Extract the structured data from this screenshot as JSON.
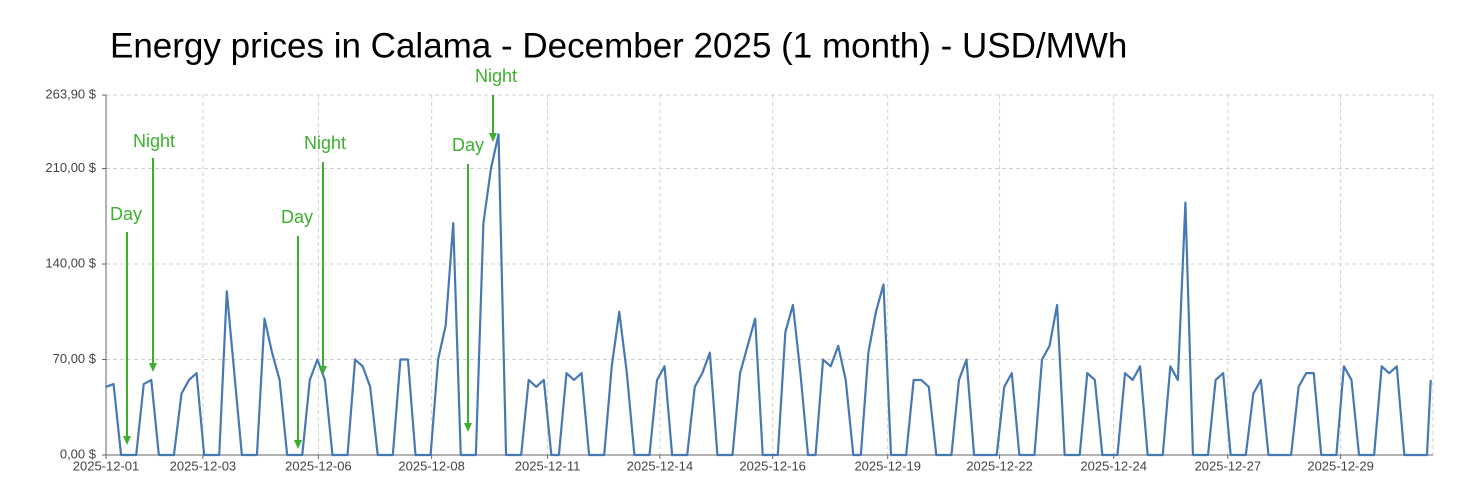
{
  "chart_data": {
    "type": "line",
    "title": "Energy prices in Calama - December 2025 (1 month) - USD/MWh",
    "xlim": [
      1,
      30.3
    ],
    "xticks": [
      {
        "value": 1,
        "label": "2025-12-01"
      },
      {
        "value": 3.14,
        "label": "2025-12-03"
      },
      {
        "value": 5.69,
        "label": "2025-12-06"
      },
      {
        "value": 8.19,
        "label": "2025-12-08"
      },
      {
        "value": 10.75,
        "label": "2025-12-11"
      },
      {
        "value": 13.23,
        "label": "2025-12-14"
      },
      {
        "value": 15.72,
        "label": "2025-12-16"
      },
      {
        "value": 18.26,
        "label": "2025-12-19"
      },
      {
        "value": 20.73,
        "label": "2025-12-22"
      },
      {
        "value": 23.25,
        "label": "2025-12-24"
      },
      {
        "value": 25.77,
        "label": "2025-12-27"
      },
      {
        "value": 28.26,
        "label": "2025-12-29"
      }
    ],
    "ylim": [
      0,
      263.9
    ],
    "yticks": [
      {
        "value": 0,
        "label": "0,00 $"
      },
      {
        "value": 70,
        "label": "70,00 $"
      },
      {
        "value": 140,
        "label": "140,00 $"
      },
      {
        "value": 210,
        "label": "210,00 $"
      },
      {
        "value": 263.9,
        "label": "263,90 $"
      }
    ],
    "grid": true,
    "x": [
      1,
      1.167,
      1.333,
      1.5,
      1.667,
      1.833,
      2,
      2.167,
      2.333,
      2.5,
      2.667,
      2.833,
      3,
      3.167,
      3.333,
      3.5,
      3.667,
      3.833,
      4,
      4.167,
      4.333,
      4.5,
      4.667,
      4.833,
      5,
      5.167,
      5.333,
      5.5,
      5.667,
      5.833,
      6,
      6.167,
      6.333,
      6.5,
      6.667,
      6.833,
      7,
      7.167,
      7.333,
      7.5,
      7.667,
      7.833,
      8,
      8.167,
      8.333,
      8.5,
      8.667,
      8.833,
      9,
      9.167,
      9.333,
      9.5,
      9.667,
      9.833,
      10,
      10.167,
      10.333,
      10.5,
      10.667,
      10.833,
      11,
      11.167,
      11.333,
      11.5,
      11.667,
      11.833,
      12,
      12.167,
      12.333,
      12.5,
      12.667,
      12.833,
      13,
      13.167,
      13.333,
      13.5,
      13.667,
      13.833,
      14,
      14.167,
      14.333,
      14.5,
      14.667,
      14.833,
      15,
      15.167,
      15.333,
      15.5,
      15.667,
      15.833,
      16,
      16.167,
      16.333,
      16.5,
      16.667,
      16.833,
      17,
      17.167,
      17.333,
      17.5,
      17.667,
      17.833,
      18,
      18.167,
      18.333,
      18.5,
      18.667,
      18.833,
      19,
      19.167,
      19.333,
      19.5,
      19.667,
      19.833,
      20,
      20.167,
      20.333,
      20.5,
      20.667,
      20.833,
      21,
      21.167,
      21.333,
      21.5,
      21.667,
      21.833,
      22,
      22.167,
      22.333,
      22.5,
      22.667,
      22.833,
      23,
      23.167,
      23.333,
      23.5,
      23.667,
      23.833,
      24,
      24.167,
      24.333,
      24.5,
      24.667,
      24.833,
      25,
      25.167,
      25.333,
      25.5,
      25.667,
      25.833,
      26,
      26.167,
      26.333,
      26.5,
      26.667,
      26.833,
      27,
      27.167,
      27.333,
      27.5,
      27.667,
      27.833,
      28,
      28.167,
      28.333,
      28.5,
      28.667,
      28.833,
      29,
      29.167,
      29.333,
      29.5,
      29.667,
      29.833,
      30,
      30.167,
      30.25
    ],
    "series": [
      {
        "color": "#4679b4",
        "values": [
          50,
          52,
          0,
          0,
          0,
          52,
          55,
          0,
          0,
          0,
          45,
          55,
          60,
          0,
          0,
          0,
          120,
          60,
          0,
          0,
          0,
          100,
          75,
          55,
          0,
          0,
          0,
          55,
          70,
          55,
          0,
          0,
          0,
          70,
          65,
          50,
          0,
          0,
          0,
          70,
          70,
          0,
          0,
          0,
          70,
          95,
          170,
          0,
          0,
          0,
          170,
          210,
          235,
          0,
          0,
          0,
          55,
          50,
          55,
          0,
          0,
          60,
          55,
          60,
          0,
          0,
          0,
          65,
          105,
          60,
          0,
          0,
          0,
          55,
          65,
          0,
          0,
          0,
          50,
          60,
          75,
          0,
          0,
          0,
          60,
          80,
          100,
          0,
          0,
          0,
          90,
          110,
          60,
          0,
          0,
          70,
          65,
          80,
          55,
          0,
          0,
          75,
          105,
          125,
          0,
          0,
          0,
          55,
          55,
          50,
          0,
          0,
          0,
          55,
          70,
          0,
          0,
          0,
          0,
          50,
          60,
          0,
          0,
          0,
          70,
          80,
          110,
          0,
          0,
          0,
          60,
          55,
          0,
          0,
          0,
          60,
          55,
          65,
          0,
          0,
          0,
          65,
          55,
          185,
          0,
          0,
          0,
          55,
          60,
          0,
          0,
          0,
          45,
          55,
          0,
          0,
          0,
          0,
          50,
          60,
          60,
          0,
          0,
          0,
          65,
          55,
          0,
          0,
          0,
          65,
          60,
          65,
          0,
          0,
          0,
          0,
          55
        ]
      }
    ],
    "annotations": [
      {
        "text": "Day"
      },
      {
        "text": "Night"
      },
      {
        "text": "Day"
      },
      {
        "text": "Night"
      },
      {
        "text": "Day"
      },
      {
        "text": "Night"
      }
    ]
  }
}
